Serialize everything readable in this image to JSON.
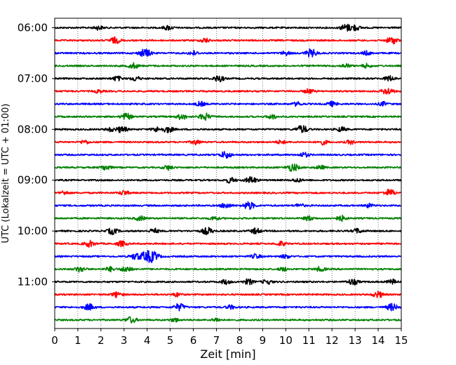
{
  "chart_data": {
    "type": "line",
    "title": "",
    "xlabel": "Zeit  [min]",
    "ylabel": "UTC (Lokalzeit = UTC + 01:00)",
    "xlim": [
      0,
      15
    ],
    "x_ticks": [
      "0",
      "1",
      "2",
      "3",
      "4",
      "5",
      "6",
      "7",
      "8",
      "9",
      "10",
      "11",
      "12",
      "13",
      "14",
      "15"
    ],
    "y_tick_labels": [
      "06:00",
      "07:00",
      "08:00",
      "09:00",
      "10:00",
      "11:00"
    ],
    "grid": "vertical dotted lines at each minute",
    "trace_interval_minutes": 15,
    "color_cycle": [
      "#000000",
      "#ff0000",
      "#0000ff",
      "#008000"
    ],
    "traces": [
      {
        "start": "06:00",
        "color": "#000000",
        "events": [
          [
            1.9,
            0.5
          ],
          [
            4.9,
            0.6
          ],
          [
            12.6,
            0.9
          ],
          [
            13.0,
            0.7
          ]
        ]
      },
      {
        "start": "06:15",
        "color": "#ff0000",
        "events": [
          [
            2.6,
            0.8
          ],
          [
            6.5,
            0.6
          ],
          [
            14.6,
            0.9
          ]
        ]
      },
      {
        "start": "06:30",
        "color": "#0000ff",
        "events": [
          [
            3.8,
            0.6
          ],
          [
            4.0,
            0.7
          ],
          [
            6.0,
            0.6
          ],
          [
            10.0,
            0.5
          ],
          [
            11.1,
            1.0
          ],
          [
            13.5,
            0.5
          ]
        ]
      },
      {
        "start": "06:45",
        "color": "#008000",
        "events": [
          [
            3.4,
            0.7
          ],
          [
            12.6,
            0.5
          ],
          [
            13.5,
            0.5
          ]
        ]
      },
      {
        "start": "07:00",
        "color": "#000000",
        "events": [
          [
            2.7,
            0.6
          ],
          [
            3.5,
            0.6
          ],
          [
            7.1,
            0.8
          ],
          [
            14.5,
            0.7
          ]
        ]
      },
      {
        "start": "07:15",
        "color": "#ff0000",
        "events": [
          [
            1.9,
            0.4
          ],
          [
            11.0,
            0.6
          ],
          [
            14.4,
            0.9
          ]
        ]
      },
      {
        "start": "07:30",
        "color": "#0000ff",
        "events": [
          [
            6.3,
            0.6
          ],
          [
            10.5,
            0.5
          ],
          [
            12.0,
            0.6
          ],
          [
            14.2,
            0.5
          ]
        ]
      },
      {
        "start": "07:45",
        "color": "#008000",
        "events": [
          [
            3.1,
            0.8
          ],
          [
            5.5,
            0.7
          ],
          [
            6.5,
            0.9
          ],
          [
            9.4,
            0.6
          ]
        ]
      },
      {
        "start": "08:00",
        "color": "#000000",
        "events": [
          [
            2.4,
            0.5
          ],
          [
            2.9,
            0.8
          ],
          [
            4.4,
            0.6
          ],
          [
            4.9,
            0.8
          ],
          [
            10.7,
            1.0
          ],
          [
            12.4,
            0.6
          ]
        ]
      },
      {
        "start": "08:15",
        "color": "#ff0000",
        "events": [
          [
            1.3,
            0.5
          ],
          [
            6.1,
            0.6
          ],
          [
            9.8,
            0.5
          ],
          [
            11.6,
            0.6
          ],
          [
            12.8,
            0.5
          ]
        ]
      },
      {
        "start": "08:30",
        "color": "#0000ff",
        "events": [
          [
            7.4,
            0.9
          ],
          [
            10.8,
            0.6
          ]
        ]
      },
      {
        "start": "08:45",
        "color": "#008000",
        "events": [
          [
            2.2,
            0.7
          ],
          [
            4.9,
            0.6
          ],
          [
            10.3,
            1.0
          ],
          [
            11.5,
            0.5
          ]
        ]
      },
      {
        "start": "09:00",
        "color": "#000000",
        "events": [
          [
            7.6,
            0.7
          ],
          [
            8.5,
            0.9
          ],
          [
            10.5,
            0.5
          ]
        ]
      },
      {
        "start": "09:15",
        "color": "#ff0000",
        "events": [
          [
            0.4,
            0.5
          ],
          [
            3.0,
            0.6
          ],
          [
            14.5,
            0.9
          ]
        ]
      },
      {
        "start": "09:30",
        "color": "#0000ff",
        "events": [
          [
            7.4,
            0.7
          ],
          [
            8.4,
            1.0
          ],
          [
            10.6,
            0.5
          ],
          [
            13.6,
            0.5
          ]
        ]
      },
      {
        "start": "09:45",
        "color": "#008000",
        "events": [
          [
            3.7,
            0.6
          ],
          [
            6.9,
            0.5
          ],
          [
            11.0,
            0.6
          ],
          [
            12.4,
            0.7
          ]
        ]
      },
      {
        "start": "10:00",
        "color": "#000000",
        "events": [
          [
            2.5,
            0.8
          ],
          [
            4.3,
            0.6
          ],
          [
            6.6,
            0.9
          ],
          [
            8.7,
            0.7
          ],
          [
            13.1,
            0.6
          ]
        ]
      },
      {
        "start": "10:15",
        "color": "#ff0000",
        "events": [
          [
            1.5,
            0.8
          ],
          [
            2.9,
            0.7
          ],
          [
            9.8,
            0.6
          ]
        ]
      },
      {
        "start": "10:30",
        "color": "#0000ff",
        "events": [
          [
            3.5,
            0.8
          ],
          [
            4.0,
            1.3
          ],
          [
            4.3,
            0.9
          ],
          [
            8.7,
            0.6
          ],
          [
            10.0,
            0.5
          ]
        ]
      },
      {
        "start": "10:45",
        "color": "#008000",
        "events": [
          [
            1.1,
            0.7
          ],
          [
            2.4,
            0.6
          ],
          [
            3.1,
            0.8
          ],
          [
            9.9,
            0.5
          ],
          [
            11.5,
            0.6
          ]
        ]
      },
      {
        "start": "11:00",
        "color": "#000000",
        "events": [
          [
            7.4,
            0.6
          ],
          [
            8.4,
            0.7
          ],
          [
            9.2,
            0.6
          ],
          [
            12.9,
            0.8
          ],
          [
            14.6,
            0.6
          ]
        ]
      },
      {
        "start": "11:15",
        "color": "#ff0000",
        "events": [
          [
            2.7,
            0.7
          ],
          [
            5.3,
            0.5
          ],
          [
            14.0,
            0.8
          ]
        ]
      },
      {
        "start": "11:30",
        "color": "#0000ff",
        "events": [
          [
            1.5,
            0.8
          ],
          [
            5.4,
            0.9
          ],
          [
            7.6,
            0.5
          ],
          [
            14.6,
            0.9
          ]
        ]
      },
      {
        "start": "11:45",
        "color": "#008000",
        "events": [
          [
            3.3,
            0.8
          ],
          [
            5.2,
            0.5
          ],
          [
            7.0,
            0.5
          ]
        ]
      }
    ]
  }
}
